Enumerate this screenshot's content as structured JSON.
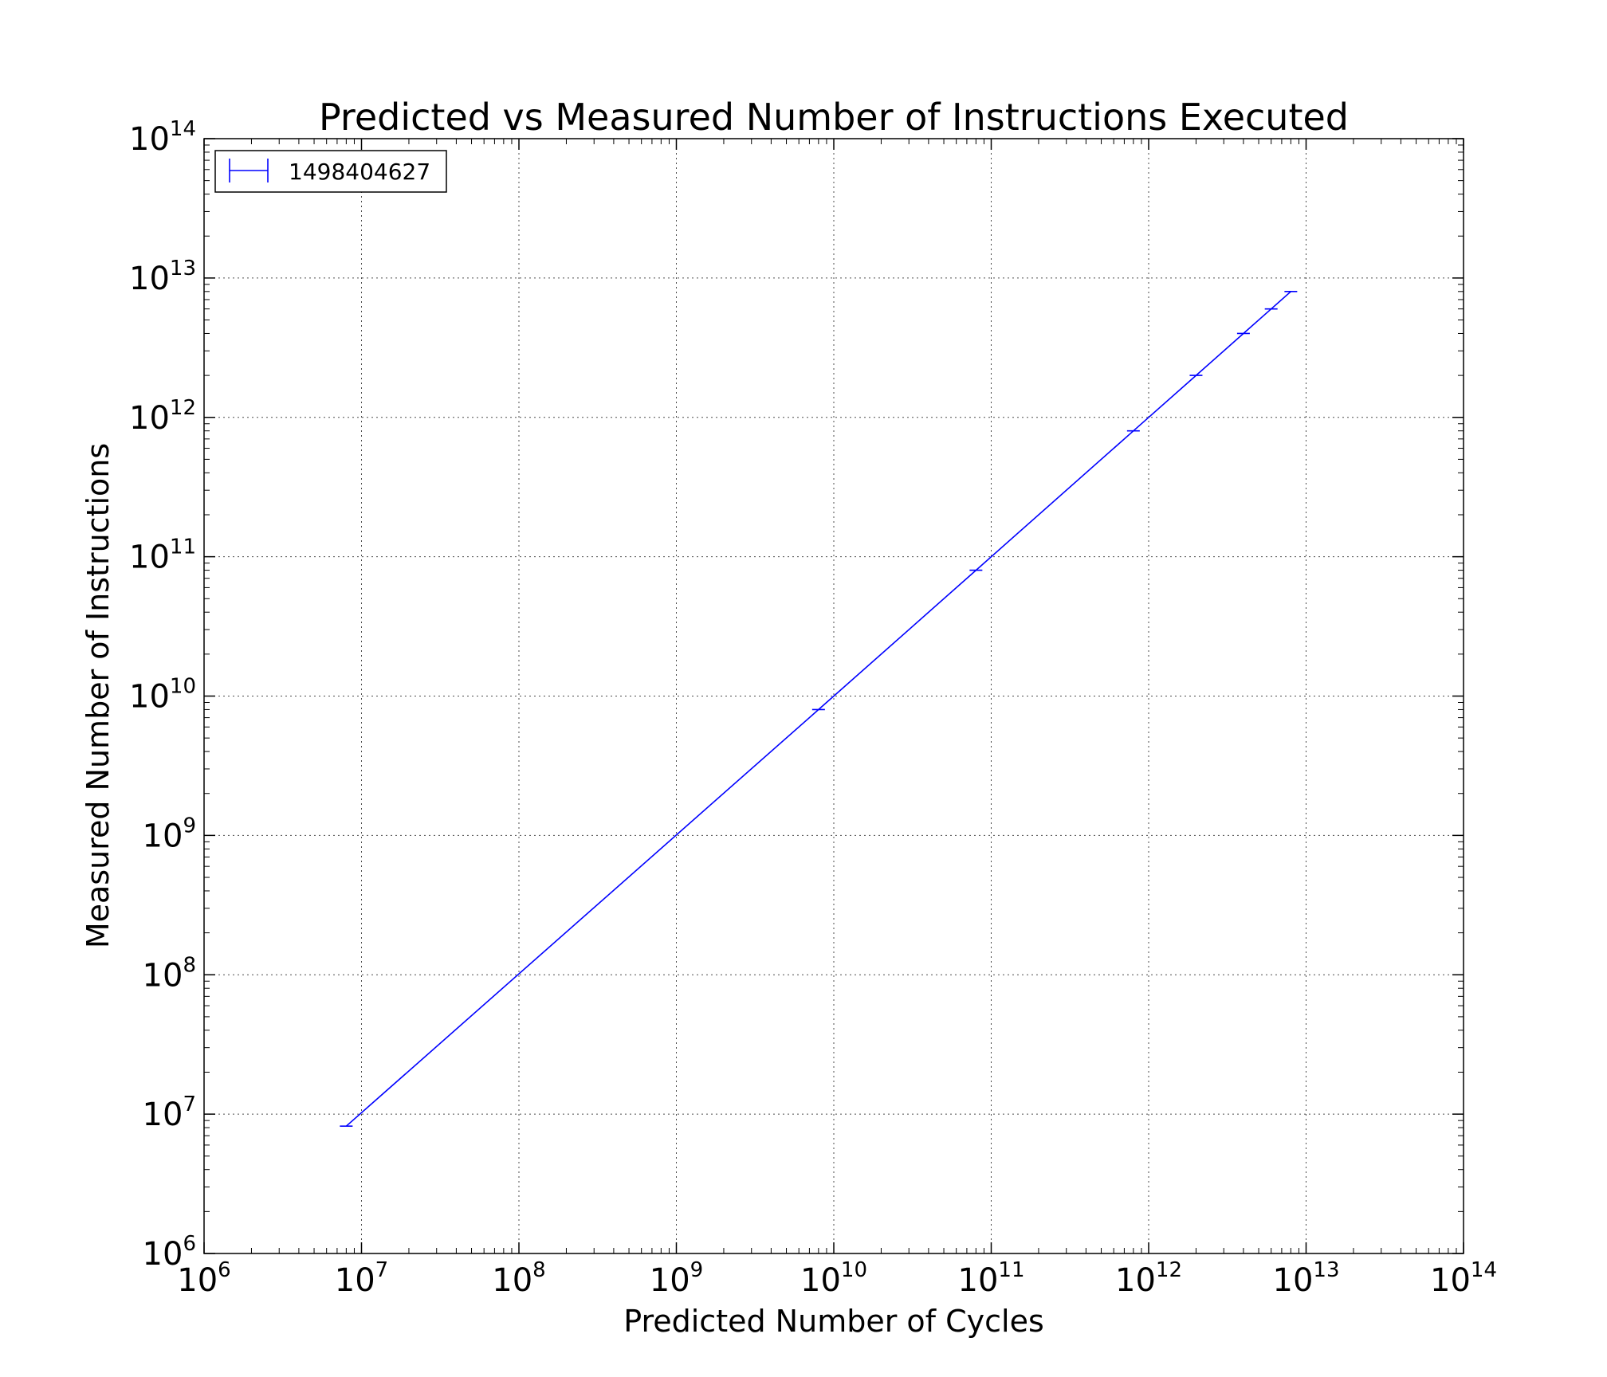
{
  "chart_data": {
    "type": "line",
    "title": "Predicted vs Measured Number of Instructions Executed",
    "xlabel": "Predicted Number of Cycles",
    "ylabel": "Measured Number of Instructions",
    "xscale": "log",
    "yscale": "log",
    "xlim": [
      1000000,
      100000000000000
    ],
    "ylim": [
      1000000,
      100000000000000
    ],
    "grid": true,
    "legend_position": "top-left",
    "x_ticks": [
      {
        "base": "10",
        "exp": "6",
        "value": 1000000
      },
      {
        "base": "10",
        "exp": "7",
        "value": 10000000
      },
      {
        "base": "10",
        "exp": "8",
        "value": 100000000
      },
      {
        "base": "10",
        "exp": "9",
        "value": 1000000000
      },
      {
        "base": "10",
        "exp": "10",
        "value": 10000000000
      },
      {
        "base": "10",
        "exp": "11",
        "value": 100000000000
      },
      {
        "base": "10",
        "exp": "12",
        "value": 1000000000000
      },
      {
        "base": "10",
        "exp": "13",
        "value": 10000000000000
      },
      {
        "base": "10",
        "exp": "14",
        "value": 100000000000000
      }
    ],
    "y_ticks": [
      {
        "base": "10",
        "exp": "6",
        "value": 1000000
      },
      {
        "base": "10",
        "exp": "7",
        "value": 10000000
      },
      {
        "base": "10",
        "exp": "8",
        "value": 100000000
      },
      {
        "base": "10",
        "exp": "9",
        "value": 1000000000
      },
      {
        "base": "10",
        "exp": "10",
        "value": 10000000000
      },
      {
        "base": "10",
        "exp": "11",
        "value": 100000000000
      },
      {
        "base": "10",
        "exp": "12",
        "value": 1000000000000
      },
      {
        "base": "10",
        "exp": "13",
        "value": 10000000000000
      },
      {
        "base": "10",
        "exp": "14",
        "value": 100000000000000
      }
    ],
    "series": [
      {
        "name": "1498404627",
        "color": "#0000ff",
        "error_bars": "horizontal",
        "points": [
          {
            "x": 8000000,
            "y": 8200000
          },
          {
            "x": 8000000000,
            "y": 8000000000
          },
          {
            "x": 80000000000,
            "y": 80000000000
          },
          {
            "x": 800000000000,
            "y": 800000000000
          },
          {
            "x": 2000000000000,
            "y": 2000000000000
          },
          {
            "x": 4000000000000,
            "y": 4000000000000
          },
          {
            "x": 6000000000000,
            "y": 6000000000000
          },
          {
            "x": 8000000000000,
            "y": 8000000000000
          }
        ]
      }
    ]
  }
}
